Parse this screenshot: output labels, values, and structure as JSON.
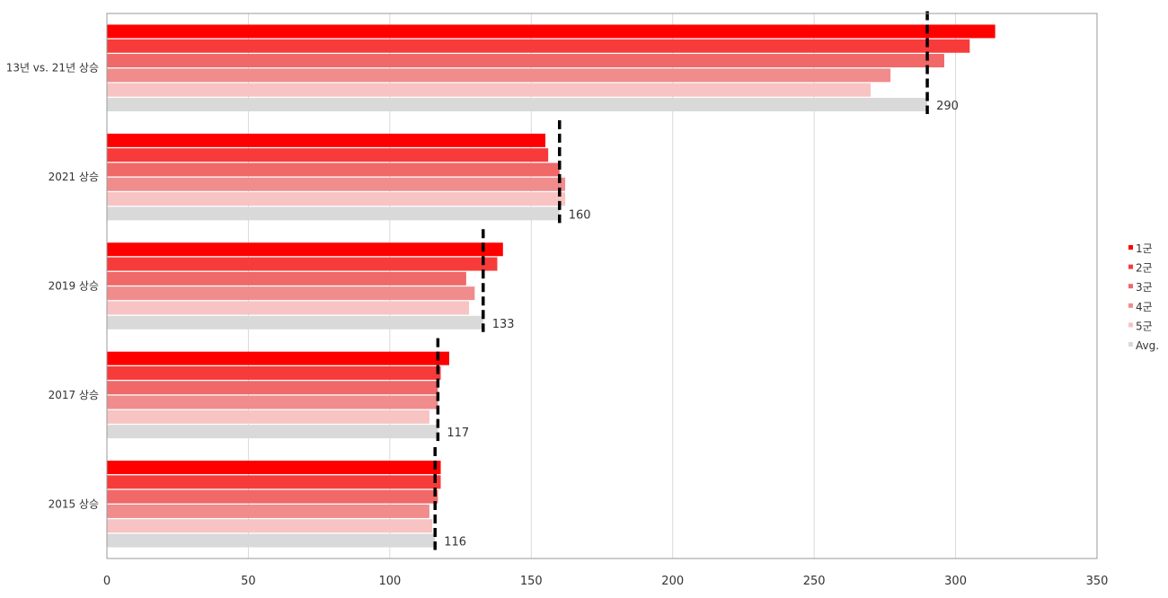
{
  "chart_data": {
    "type": "bar",
    "orientation": "horizontal",
    "categories": [
      "13년 vs. 21년 상승",
      "2021 상승",
      "2019 상승",
      "2017 상승",
      "2015 상승"
    ],
    "series": [
      {
        "name": "1군",
        "color": "#ff0000",
        "values": [
          314,
          155,
          140,
          121,
          118
        ]
      },
      {
        "name": "2군",
        "color": "#f73b3b",
        "values": [
          305,
          156,
          138,
          118,
          118
        ]
      },
      {
        "name": "3군",
        "color": "#f06868",
        "values": [
          296,
          160,
          127,
          117,
          117
        ]
      },
      {
        "name": "4군",
        "color": "#f08c8c",
        "values": [
          277,
          162,
          130,
          117,
          114
        ]
      },
      {
        "name": "5군",
        "color": "#f8c3c3",
        "values": [
          270,
          162,
          128,
          114,
          115
        ]
      },
      {
        "name": "Avg.",
        "color": "#d9d9d9",
        "values": [
          290,
          160,
          133,
          117,
          116
        ]
      }
    ],
    "average_labels": [
      "290",
      "160",
      "133",
      "117",
      "116"
    ],
    "x_ticks": [
      "0",
      "50",
      "100",
      "150",
      "200",
      "250",
      "300",
      "350"
    ],
    "xlim": [
      0,
      350
    ],
    "grid": "vertical",
    "legend_position": "right",
    "reference_line": "dashed black vertical line at each group's average"
  }
}
